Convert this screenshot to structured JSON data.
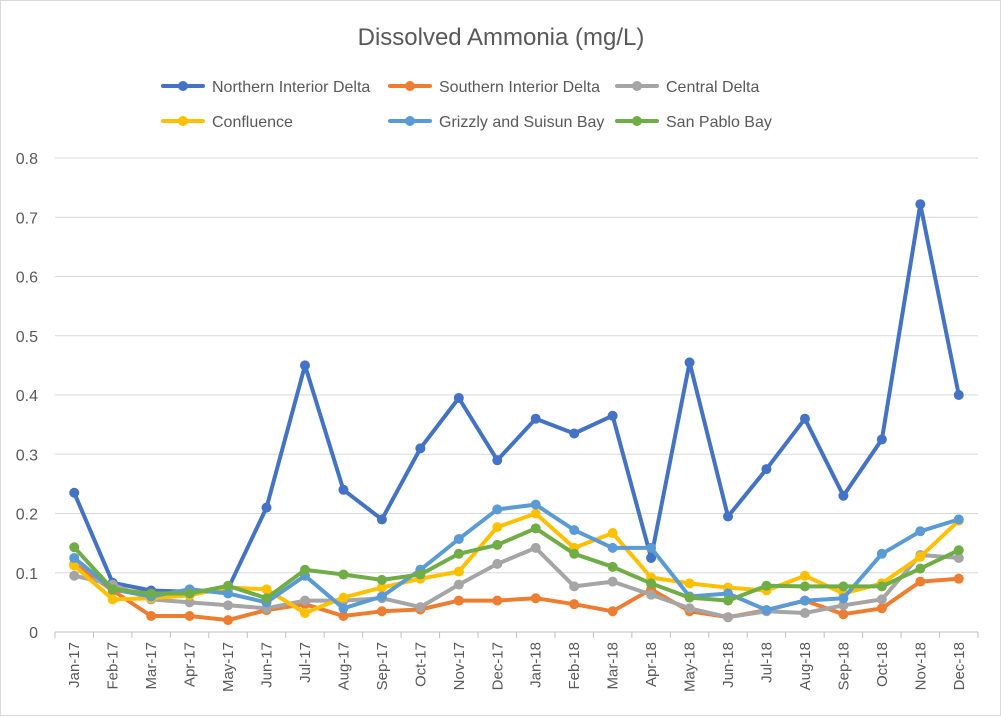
{
  "chart_data": {
    "type": "line",
    "title": "Dissolved Ammonia (mg/L)",
    "xlabel": "",
    "ylabel": "",
    "ylim": [
      0,
      0.8
    ],
    "yticks": [
      "0",
      "0.1",
      "0.2",
      "0.3",
      "0.4",
      "0.5",
      "0.6",
      "0.7",
      "0.8"
    ],
    "grid": "horizontal",
    "legend_position": "top",
    "categories": [
      "Jan-17",
      "Feb-17",
      "Mar-17",
      "Apr-17",
      "May-17",
      "Jun-17",
      "Jul-17",
      "Aug-17",
      "Sep-17",
      "Oct-17",
      "Nov-17",
      "Dec-17",
      "Jan-18",
      "Feb-18",
      "Mar-18",
      "Apr-18",
      "May-18",
      "Jun-18",
      "Jul-18",
      "Aug-18",
      "Sep-18",
      "Oct-18",
      "Nov-18",
      "Dec-18"
    ],
    "series": [
      {
        "name": "Northern Interior Delta",
        "color": "#4472c4",
        "values": [
          0.235,
          0.083,
          0.07,
          0.068,
          0.073,
          0.21,
          0.45,
          0.24,
          0.19,
          0.31,
          0.395,
          0.29,
          0.36,
          0.335,
          0.365,
          0.125,
          0.455,
          0.195,
          0.275,
          0.36,
          0.23,
          0.325,
          0.722,
          0.4
        ]
      },
      {
        "name": "Southern Interior Delta",
        "color": "#ed7d31",
        "values": [
          0.115,
          0.07,
          0.027,
          0.027,
          0.02,
          0.037,
          0.047,
          0.027,
          0.035,
          0.038,
          0.053,
          0.053,
          0.057,
          0.047,
          0.035,
          0.072,
          0.035,
          0.025,
          0.037,
          0.053,
          0.03,
          0.04,
          0.085,
          0.09
        ]
      },
      {
        "name": "Central Delta",
        "color": "#a5a5a5",
        "values": [
          0.095,
          0.08,
          0.055,
          0.05,
          0.045,
          0.04,
          0.053,
          0.053,
          0.057,
          0.042,
          0.08,
          0.115,
          0.142,
          0.077,
          0.085,
          0.063,
          0.04,
          0.025,
          0.035,
          0.032,
          0.045,
          0.055,
          0.13,
          0.125
        ]
      },
      {
        "name": "Confluence",
        "color": "#ffc000",
        "values": [
          0.112,
          0.055,
          0.057,
          0.062,
          0.075,
          0.072,
          0.032,
          0.058,
          0.075,
          0.09,
          0.102,
          0.177,
          0.2,
          0.142,
          0.167,
          0.092,
          0.082,
          0.075,
          0.07,
          0.095,
          0.065,
          0.082,
          0.127,
          0.188
        ]
      },
      {
        "name": "Grizzly and Suisun Bay",
        "color": "#5b9bd5",
        "values": [
          0.125,
          0.072,
          0.06,
          0.072,
          0.065,
          0.05,
          0.095,
          0.04,
          0.06,
          0.105,
          0.157,
          0.207,
          0.215,
          0.172,
          0.142,
          0.142,
          0.06,
          0.065,
          0.037,
          0.053,
          0.057,
          0.132,
          0.17,
          0.19
        ]
      },
      {
        "name": "San Pablo Bay",
        "color": "#70ad47",
        "values": [
          0.143,
          0.072,
          0.065,
          0.065,
          0.078,
          0.057,
          0.105,
          0.097,
          0.088,
          0.097,
          0.132,
          0.147,
          0.175,
          0.132,
          0.11,
          0.082,
          0.058,
          0.053,
          0.078,
          0.077,
          0.077,
          0.077,
          0.107,
          0.138
        ]
      }
    ]
  }
}
